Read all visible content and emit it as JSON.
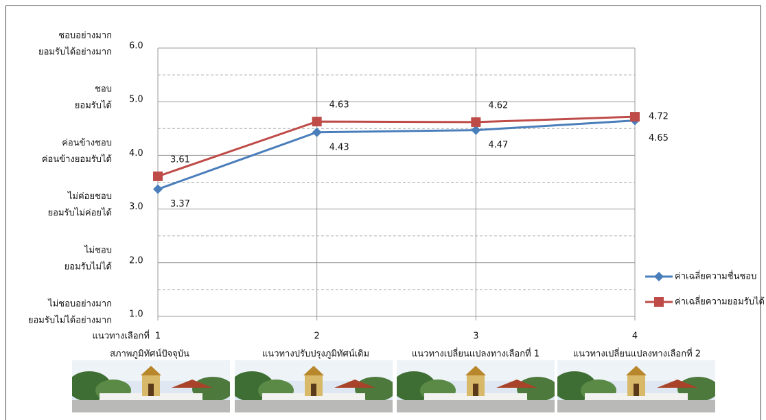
{
  "chart_data": {
    "type": "line",
    "x_axis_label": "แนวทางเลือกที่",
    "x": [
      1,
      2,
      3,
      4
    ],
    "xlim": [
      1,
      4
    ],
    "xticks": [
      1,
      2,
      3,
      4
    ],
    "categories": [
      "สภาพภูมิทัศน์ปัจจุบัน",
      "แนวทางปรับปรุงภูมิทัศน์เดิม",
      "แนวทางเปลี่ยนแปลงทางเลือกที่ 1",
      "แนวทางเปลี่ยนแปลงทางเลือกที่ 2"
    ],
    "ylim": [
      1,
      6
    ],
    "yticks": [
      {
        "value": 1,
        "label": "1.0"
      },
      {
        "value": 2,
        "label": "2.0"
      },
      {
        "value": 3,
        "label": "3.0"
      },
      {
        "value": 4,
        "label": "4.0"
      },
      {
        "value": 5,
        "label": "5.0"
      },
      {
        "value": 6,
        "label": "6.0"
      }
    ],
    "minor_grid": [
      1.5,
      2.5,
      3.5,
      4.5,
      5.5
    ],
    "level_labels": [
      {
        "value": 6,
        "label": [
          "ชอบอย่างมาก",
          "ยอมรับได้อย่างมาก"
        ]
      },
      {
        "value": 5,
        "label": [
          "ชอบ",
          "ยอมรับได้"
        ]
      },
      {
        "value": 4,
        "label": [
          "ค่อนข้างชอบ",
          "ค่อนข้างยอมรับได้"
        ]
      },
      {
        "value": 3,
        "label": [
          "ไม่ค่อยชอบ",
          "ยอมรับไม่ค่อยได้"
        ]
      },
      {
        "value": 2,
        "label": [
          "ไม่ชอบ",
          "ยอมรับไม่ได้"
        ]
      },
      {
        "value": 1,
        "label": [
          "ไม่ชอบอย่างมาก",
          "ยอมรับไม่ได้อย่างมาก"
        ]
      }
    ],
    "series": [
      {
        "name": "ค่าเฉลี่ยความชื่นชอบ",
        "color": "#4a7ebb",
        "marker": "diamond",
        "values": [
          3.37,
          4.43,
          4.47,
          4.65
        ]
      },
      {
        "name": "ค่าเฉลี่ยความยอมรับได้",
        "color": "#be4b48",
        "marker": "square",
        "values": [
          3.61,
          4.63,
          4.62,
          4.72
        ]
      }
    ],
    "grid": true,
    "legend": "right"
  }
}
